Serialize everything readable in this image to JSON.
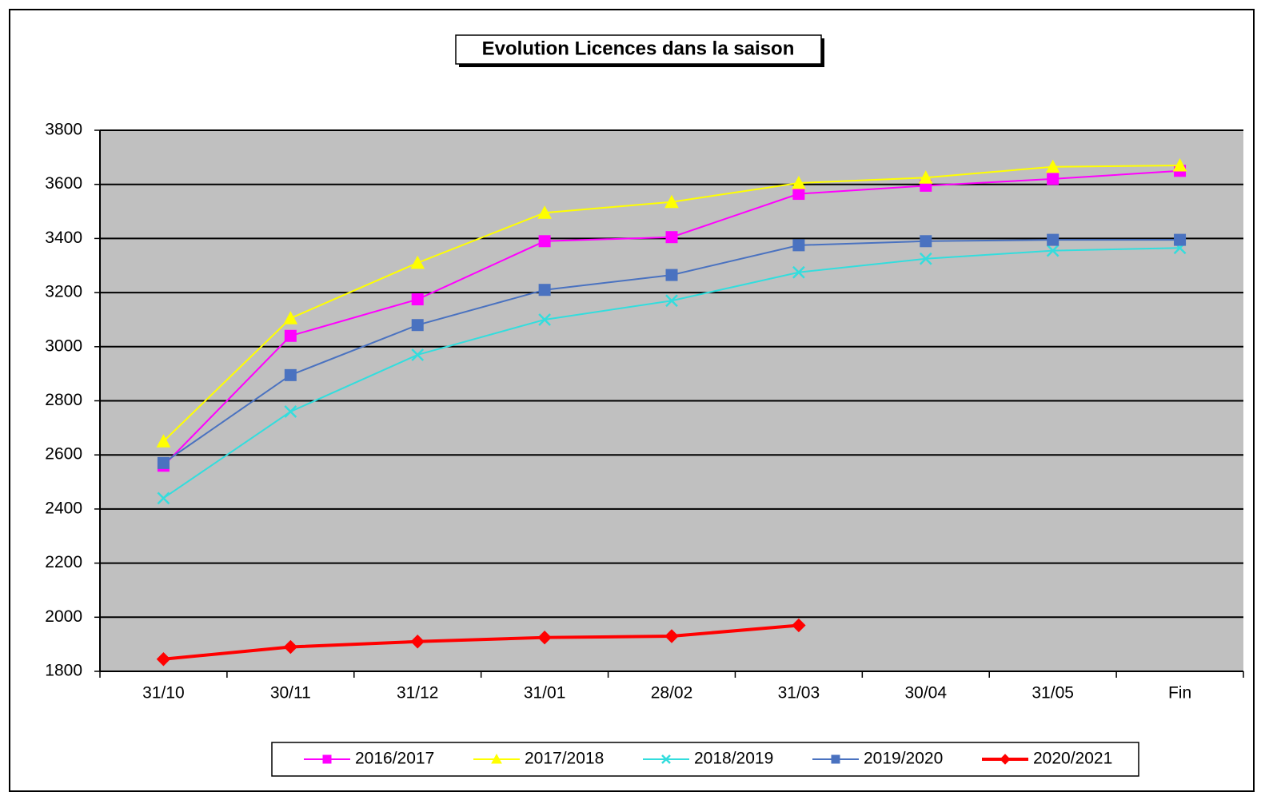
{
  "chart_data": {
    "type": "line",
    "title": "Evolution  Licences dans la saison",
    "categories": [
      "31/10",
      "30/11",
      "31/12",
      "31/01",
      "28/02",
      "31/03",
      "30/04",
      "31/05",
      "Fin"
    ],
    "series": [
      {
        "name": "2016/2017",
        "color": "#ff00ff",
        "marker": "square",
        "values": [
          2560,
          3040,
          3175,
          3390,
          3405,
          3565,
          3595,
          3620,
          3650
        ]
      },
      {
        "name": "2017/2018",
        "color": "#ffff00",
        "marker": "triangle",
        "values": [
          2650,
          3105,
          3310,
          3495,
          3535,
          3605,
          3625,
          3665,
          3670
        ]
      },
      {
        "name": "2018/2019",
        "color": "#33dddd",
        "marker": "x",
        "values": [
          2440,
          2760,
          2970,
          3100,
          3170,
          3275,
          3325,
          3355,
          3365
        ]
      },
      {
        "name": "2019/2020",
        "color": "#4a72c0",
        "marker": "square",
        "values": [
          2570,
          2895,
          3080,
          3210,
          3265,
          3375,
          3390,
          3395,
          3395
        ]
      },
      {
        "name": "2020/2021",
        "color": "#ff0000",
        "marker": "diamond",
        "values": [
          1845,
          1890,
          1910,
          1925,
          1930,
          1970,
          null,
          null,
          null
        ]
      }
    ],
    "ylim": [
      1800,
      3800
    ],
    "yticks": [
      1800,
      2000,
      2200,
      2400,
      2600,
      2800,
      3000,
      3200,
      3400,
      3600,
      3800
    ],
    "grid": true,
    "legend": "bottom"
  }
}
